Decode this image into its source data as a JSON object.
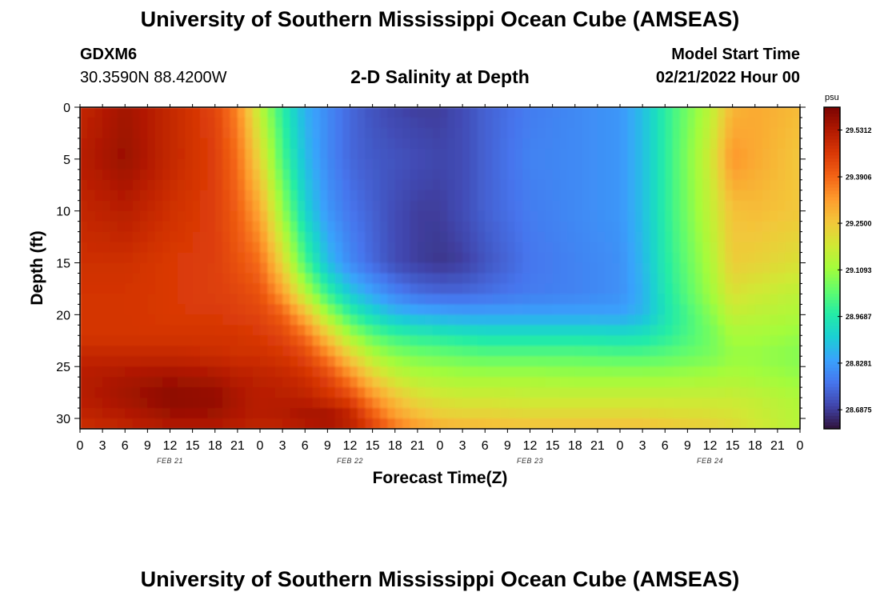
{
  "figure": {
    "title": "University of Southern Mississippi Ocean Cube (AMSEAS)",
    "title_repeat": "University of Southern Mississippi Ocean Cube (AMSEAS)",
    "station_id": "GDXM6",
    "station_coords": "30.3590N  88.4200W",
    "plot_subtitle": "2-D Salinity at Depth",
    "model_start_label": "Model Start Time",
    "model_start_value": "02/21/2022 Hour 00"
  },
  "chart_data": {
    "type": "heatmap",
    "title": "2-D Salinity at Depth",
    "xlabel": "Forecast Time(Z)",
    "ylabel": "Depth (ft)",
    "xlim": [
      0,
      96
    ],
    "ylim": [
      31,
      0
    ],
    "x_tick_labels": [
      "0",
      "3",
      "6",
      "9",
      "12",
      "15",
      "18",
      "21",
      "0",
      "3",
      "6",
      "9",
      "12",
      "15",
      "18",
      "21",
      "0",
      "3",
      "6",
      "9",
      "12",
      "15",
      "18",
      "21",
      "0",
      "3",
      "6",
      "9",
      "12",
      "15",
      "18",
      "21",
      "0"
    ],
    "x_day_labels": [
      {
        "label": "FEB 21",
        "hour": 12
      },
      {
        "label": "FEB 22",
        "hour": 36
      },
      {
        "label": "FEB 23",
        "hour": 60
      },
      {
        "label": "FEB 24",
        "hour": 84
      }
    ],
    "y_ticks": [
      0,
      5,
      10,
      15,
      20,
      25,
      30
    ],
    "y_tick_labels": [
      "0",
      "5",
      "10",
      "15",
      "20",
      "25",
      "30"
    ],
    "colorbar": {
      "unit": "psu",
      "ticks": [
        29.5312,
        29.39,
        29.25,
        29.1093,
        28.9687,
        28.8281,
        28.6875
      ],
      "tick_labels": [
        "29.5312",
        "29.3906",
        "29.2500",
        "29.1093",
        "28.9687",
        "28.8281",
        "28.6875"
      ],
      "range": [
        28.63,
        29.6
      ],
      "colormap": [
        "#30123b",
        "#4145ab",
        "#4675ed",
        "#39a2fc",
        "#1bcfd4",
        "#24eca6",
        "#61fc6c",
        "#a4fc3b",
        "#d1e834",
        "#f3c63a",
        "#fe9b2d",
        "#f36315",
        "#d93806",
        "#b11901",
        "#7a0402"
      ]
    },
    "grid": false,
    "salinity_anchors_psu": {
      "x_hours": [
        0,
        6,
        12,
        18,
        21,
        24,
        27,
        30,
        33,
        36,
        39,
        42,
        45,
        48,
        51,
        54,
        60,
        66,
        72,
        75,
        78,
        84,
        87,
        90,
        96
      ],
      "depths_ft": [
        0,
        5,
        10,
        15,
        18,
        20,
        22,
        24,
        26,
        28,
        30,
        31
      ],
      "values": [
        [
          29.5,
          29.55,
          29.5,
          29.44,
          29.35,
          29.15,
          28.98,
          28.86,
          28.8,
          28.75,
          28.72,
          28.7,
          28.69,
          28.69,
          28.71,
          28.74,
          28.78,
          28.8,
          28.82,
          28.88,
          28.98,
          29.15,
          29.28,
          29.3,
          29.27
        ],
        [
          29.52,
          29.56,
          29.5,
          29.45,
          29.38,
          29.22,
          29.02,
          28.88,
          28.8,
          28.75,
          28.73,
          28.72,
          28.71,
          28.7,
          28.71,
          28.74,
          28.79,
          28.8,
          28.82,
          28.88,
          28.98,
          29.18,
          29.33,
          29.3,
          29.25
        ],
        [
          29.5,
          29.52,
          29.48,
          29.45,
          29.4,
          29.3,
          29.1,
          28.92,
          28.82,
          28.77,
          28.74,
          28.71,
          28.69,
          28.69,
          28.71,
          28.74,
          28.78,
          28.8,
          28.82,
          28.88,
          28.98,
          29.16,
          29.26,
          29.27,
          29.25
        ],
        [
          29.48,
          29.48,
          29.46,
          29.45,
          29.42,
          29.38,
          29.22,
          29.02,
          28.88,
          28.8,
          28.75,
          28.71,
          28.69,
          28.68,
          28.69,
          28.72,
          28.77,
          28.79,
          28.81,
          28.87,
          28.97,
          29.13,
          29.24,
          29.23,
          29.2
        ],
        [
          29.47,
          29.47,
          29.46,
          29.45,
          29.44,
          29.42,
          29.32,
          29.15,
          29.0,
          28.9,
          28.84,
          28.79,
          28.76,
          28.75,
          28.75,
          28.76,
          28.78,
          28.79,
          28.81,
          28.86,
          28.96,
          29.11,
          29.2,
          29.18,
          29.15
        ],
        [
          29.47,
          29.47,
          29.46,
          29.46,
          29.45,
          29.44,
          29.4,
          29.28,
          29.12,
          29.0,
          28.93,
          28.88,
          28.86,
          28.85,
          28.84,
          28.84,
          28.84,
          28.84,
          28.84,
          28.87,
          28.95,
          29.08,
          29.16,
          29.15,
          29.13
        ],
        [
          29.47,
          29.47,
          29.47,
          29.47,
          29.47,
          29.46,
          29.44,
          29.38,
          29.25,
          29.12,
          29.04,
          29.0,
          28.98,
          28.97,
          28.96,
          28.95,
          28.95,
          28.95,
          28.94,
          28.95,
          28.98,
          29.06,
          29.12,
          29.12,
          29.1
        ],
        [
          29.5,
          29.5,
          29.5,
          29.49,
          29.48,
          29.48,
          29.47,
          29.44,
          29.36,
          29.24,
          29.14,
          29.09,
          29.07,
          29.06,
          29.05,
          29.04,
          29.04,
          29.04,
          29.03,
          29.03,
          29.04,
          29.07,
          29.1,
          29.1,
          29.08
        ],
        [
          29.52,
          29.54,
          29.55,
          29.54,
          29.52,
          29.51,
          29.5,
          29.48,
          29.44,
          29.35,
          29.24,
          29.17,
          29.14,
          29.13,
          29.12,
          29.12,
          29.12,
          29.11,
          29.11,
          29.11,
          29.11,
          29.12,
          29.13,
          29.12,
          29.1
        ],
        [
          29.52,
          29.55,
          29.58,
          29.57,
          29.54,
          29.52,
          29.52,
          29.51,
          29.48,
          29.44,
          29.34,
          29.26,
          29.21,
          29.19,
          29.18,
          29.18,
          29.17,
          29.17,
          29.17,
          29.17,
          29.17,
          29.17,
          29.17,
          29.16,
          29.13
        ],
        [
          29.5,
          29.52,
          29.55,
          29.55,
          29.53,
          29.52,
          29.53,
          29.55,
          29.56,
          29.52,
          29.42,
          29.33,
          29.28,
          29.25,
          29.24,
          29.24,
          29.23,
          29.23,
          29.23,
          29.23,
          29.22,
          29.21,
          29.2,
          29.18,
          29.14
        ],
        [
          29.48,
          29.5,
          29.52,
          29.52,
          29.51,
          29.5,
          29.5,
          29.51,
          29.52,
          29.5,
          29.45,
          29.38,
          29.33,
          29.3,
          29.29,
          29.28,
          29.27,
          29.27,
          29.27,
          29.27,
          29.26,
          29.24,
          29.22,
          29.19,
          29.14
        ]
      ]
    }
  }
}
